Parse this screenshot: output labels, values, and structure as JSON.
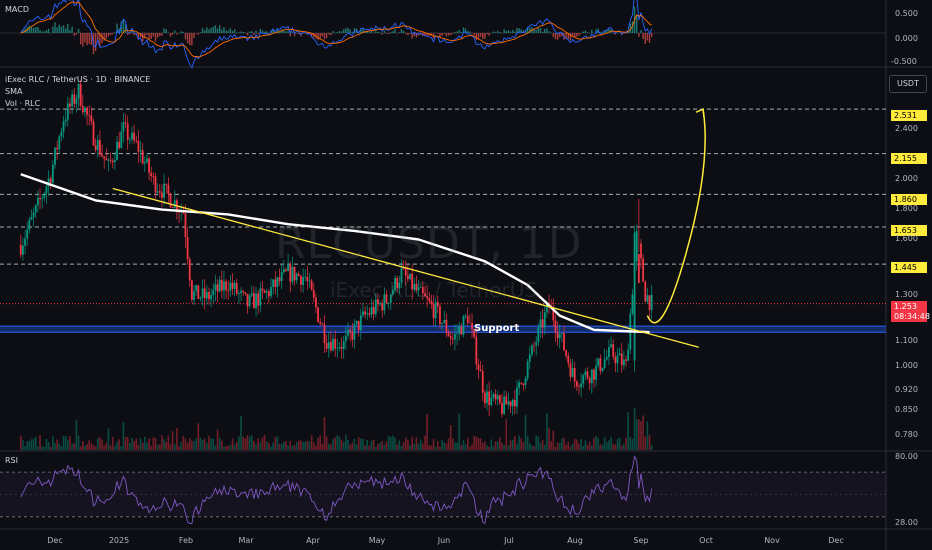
{
  "symbol": {
    "title": "iExec RLC / TetherUS · 1D · BINANCE",
    "sma_label": "SMA",
    "vol_label": "Vol · RLC",
    "watermark_ticker": "RLCUSDT, 1D",
    "watermark_name": "iExec RLC / TetherUS"
  },
  "panes": {
    "macd_label": "MACD",
    "rsi_label": "RSI",
    "currency_button": "USDT"
  },
  "annotations": {
    "support_label": "Support"
  },
  "price": {
    "current": "1.253",
    "countdown": "08:34:48"
  },
  "colors": {
    "background": "#0c0e13",
    "up_candle": "#089981",
    "down_candle": "#f23645",
    "sma_line": "#ffffff",
    "trendline": "#ffeb3b",
    "projection": "#ffeb3b",
    "support_zone": "#2962ff",
    "rsi_line": "#7e57c2",
    "macd_line": "#2962ff",
    "signal_line": "#ff6d00"
  },
  "chart_data": [
    {
      "type": "candlestick",
      "title": "iExec RLC / TetherUS · 1D · BINANCE",
      "x_ticks": [
        "Dec",
        "2025",
        "Feb",
        "Mar",
        "Apr",
        "May",
        "Jun",
        "Jul",
        "Aug",
        "Sep",
        "Oct",
        "Nov",
        "Dec"
      ],
      "y_scale": "log",
      "y_ticks": [
        "2.400",
        "2.000",
        "1.800",
        "1.600",
        "1.300",
        "1.100",
        "1.000",
        "0.920",
        "0.850",
        "0.780"
      ],
      "ylim": [
        0.75,
        2.85
      ],
      "horizontal_levels": [
        {
          "label": "2.531",
          "value": 2.531
        },
        {
          "label": "2.155",
          "value": 2.155
        },
        {
          "label": "1.860",
          "value": 1.86
        },
        {
          "label": "1.653",
          "value": 1.653
        },
        {
          "label": "1.445",
          "value": 1.445
        }
      ],
      "current_price": 1.253,
      "support_zone": [
        1.13,
        1.155
      ],
      "close_path": [
        {
          "x": "2024-11-15",
          "y": 1.55
        },
        {
          "x": "2024-11-22",
          "y": 1.75
        },
        {
          "x": "2024-11-29",
          "y": 2.0
        },
        {
          "x": "2024-12-05",
          "y": 2.45
        },
        {
          "x": "2024-12-12",
          "y": 2.7
        },
        {
          "x": "2024-12-19",
          "y": 2.3
        },
        {
          "x": "2024-12-26",
          "y": 2.05
        },
        {
          "x": "2025-01-02",
          "y": 2.35
        },
        {
          "x": "2025-01-09",
          "y": 2.2
        },
        {
          "x": "2025-01-16",
          "y": 1.95
        },
        {
          "x": "2025-01-23",
          "y": 1.85
        },
        {
          "x": "2025-01-30",
          "y": 1.75
        },
        {
          "x": "2025-02-03",
          "y": 1.3
        },
        {
          "x": "2025-02-10",
          "y": 1.28
        },
        {
          "x": "2025-02-20",
          "y": 1.35
        },
        {
          "x": "2025-03-01",
          "y": 1.25
        },
        {
          "x": "2025-03-10",
          "y": 1.3
        },
        {
          "x": "2025-03-20",
          "y": 1.4
        },
        {
          "x": "2025-03-28",
          "y": 1.38
        },
        {
          "x": "2025-04-07",
          "y": 1.1
        },
        {
          "x": "2025-04-15",
          "y": 1.08
        },
        {
          "x": "2025-04-25",
          "y": 1.2
        },
        {
          "x": "2025-05-05",
          "y": 1.27
        },
        {
          "x": "2025-05-12",
          "y": 1.4
        },
        {
          "x": "2025-05-20",
          "y": 1.3
        },
        {
          "x": "2025-05-28",
          "y": 1.22
        },
        {
          "x": "2025-06-05",
          "y": 1.1
        },
        {
          "x": "2025-06-12",
          "y": 1.2
        },
        {
          "x": "2025-06-20",
          "y": 0.9
        },
        {
          "x": "2025-06-28",
          "y": 0.86
        },
        {
          "x": "2025-07-05",
          "y": 0.9
        },
        {
          "x": "2025-07-12",
          "y": 1.05
        },
        {
          "x": "2025-07-20",
          "y": 1.25
        },
        {
          "x": "2025-07-25",
          "y": 1.12
        },
        {
          "x": "2025-08-01",
          "y": 0.95
        },
        {
          "x": "2025-08-10",
          "y": 0.98
        },
        {
          "x": "2025-08-18",
          "y": 1.05
        },
        {
          "x": "2025-08-25",
          "y": 1.0
        },
        {
          "x": "2025-08-30",
          "y": 1.6
        },
        {
          "x": "2025-09-03",
          "y": 1.3
        },
        {
          "x": "2025-09-06",
          "y": 1.253
        }
      ],
      "sma_path": [
        {
          "x": "2024-11-15",
          "y": 2.0
        },
        {
          "x": "2024-12-20",
          "y": 1.82
        },
        {
          "x": "2025-01-20",
          "y": 1.76
        },
        {
          "x": "2025-02-20",
          "y": 1.73
        },
        {
          "x": "2025-03-20",
          "y": 1.67
        },
        {
          "x": "2025-04-20",
          "y": 1.63
        },
        {
          "x": "2025-05-20",
          "y": 1.58
        },
        {
          "x": "2025-06-20",
          "y": 1.46
        },
        {
          "x": "2025-07-10",
          "y": 1.34
        },
        {
          "x": "2025-07-25",
          "y": 1.2
        },
        {
          "x": "2025-08-10",
          "y": 1.14
        },
        {
          "x": "2025-09-05",
          "y": 1.13
        }
      ],
      "trendline": [
        {
          "x": "2024-12-28",
          "y": 1.9
        },
        {
          "x": "2025-09-28",
          "y": 1.07
        }
      ],
      "projection": [
        {
          "x": "2025-09-04",
          "y": 1.2
        },
        {
          "x": "2025-09-10",
          "y": 1.16
        },
        {
          "x": "2025-09-22",
          "y": 1.5
        },
        {
          "x": "2025-09-30",
          "y": 2.531
        }
      ]
    },
    {
      "type": "line",
      "title": "RSI",
      "y_ticks": [
        "80.00",
        "28.00"
      ],
      "ylim": [
        20,
        88
      ],
      "levels": [
        70,
        30
      ]
    },
    {
      "type": "line",
      "title": "MACD",
      "y_ticks": [
        "0.500",
        "0.000",
        "-0.500"
      ],
      "ylim": [
        -0.7,
        0.7
      ]
    }
  ]
}
